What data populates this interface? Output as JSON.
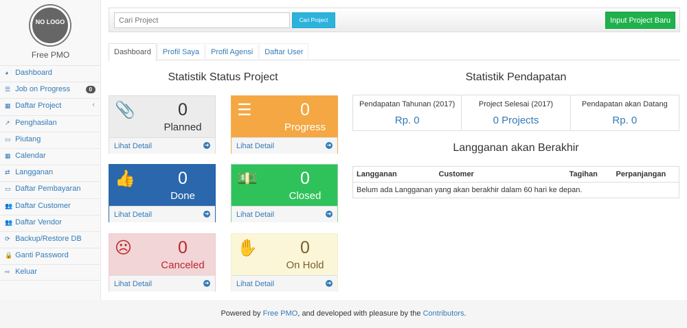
{
  "sidebar": {
    "logo_text": "NO LOGO",
    "brand": "Free PMO",
    "items": [
      {
        "label": "Dashboard",
        "icon": "dashboard-icon",
        "glyph": "◕"
      },
      {
        "label": "Job on Progress",
        "icon": "tasks-icon",
        "glyph": "☰",
        "badge": "0"
      },
      {
        "label": "Daftar Project",
        "icon": "table-icon",
        "glyph": "▦",
        "chevron": "‹"
      },
      {
        "label": "Penghasilan",
        "icon": "line-chart-icon",
        "glyph": "↗"
      },
      {
        "label": "Piutang",
        "icon": "money-icon",
        "glyph": "▭"
      },
      {
        "label": "Calendar",
        "icon": "calendar-icon",
        "glyph": "▦"
      },
      {
        "label": "Langganan",
        "icon": "retweet-icon",
        "glyph": "⇄"
      },
      {
        "label": "Daftar Pembayaran",
        "icon": "money-icon",
        "glyph": "▭"
      },
      {
        "label": "Daftar Customer",
        "icon": "users-icon",
        "glyph": "👥"
      },
      {
        "label": "Daftar Vendor",
        "icon": "users-icon",
        "glyph": "👥"
      },
      {
        "label": "Backup/Restore DB",
        "icon": "refresh-icon",
        "glyph": "⟳"
      },
      {
        "label": "Ganti Password",
        "icon": "lock-icon",
        "glyph": "🔒"
      },
      {
        "label": "Keluar",
        "icon": "sign-out-icon",
        "glyph": "⇨"
      }
    ]
  },
  "topbar": {
    "search_placeholder": "Cari Project",
    "search_button": "Cari Project",
    "new_button": "Input Project Baru"
  },
  "tabs": [
    "Dashboard",
    "Profil Saya",
    "Profil Agensi",
    "Daftar User"
  ],
  "status": {
    "title": "Statistik Status Project",
    "detail_label": "Lihat Detail",
    "cards": [
      {
        "label": "Planned",
        "count": "0",
        "icon": "paperclip-icon",
        "glyph": "📎",
        "bg": "#ececec",
        "fg": "#333",
        "border": "#ddd"
      },
      {
        "label": "Progress",
        "count": "0",
        "icon": "tasks-icon",
        "glyph": "☰",
        "bg": "#f4a742",
        "fg": "#fff",
        "border": "#f0ad4e"
      },
      {
        "label": "Done",
        "count": "0",
        "icon": "thumbs-up-icon",
        "glyph": "👍",
        "bg": "#2a67ac",
        "fg": "#fff",
        "border": "#2a67ac"
      },
      {
        "label": "Closed",
        "count": "0",
        "icon": "money-icon",
        "glyph": "💵",
        "bg": "#2fc25b",
        "fg": "#fff",
        "border": "#8fd1a1"
      },
      {
        "label": "Canceled",
        "count": "0",
        "icon": "frown-icon",
        "glyph": "☹",
        "bg": "#f2d5d6",
        "fg": "#b8282e",
        "border": "#ebccd1"
      },
      {
        "label": "On Hold",
        "count": "0",
        "icon": "hand-icon",
        "glyph": "✋",
        "bg": "#fbf6d8",
        "fg": "#7a5f2c",
        "border": "#f5eecb"
      }
    ]
  },
  "income": {
    "title": "Statistik Pendapatan",
    "stats": [
      {
        "label": "Pendapatan Tahunan (2017)",
        "value": "Rp. 0"
      },
      {
        "label": "Project Selesai (2017)",
        "value": "0 Projects"
      },
      {
        "label": "Pendapatan akan Datang",
        "value": "Rp. 0"
      }
    ]
  },
  "subscriptions": {
    "title": "Langganan akan Berakhir",
    "columns": [
      "Langganan",
      "Customer",
      "Tagihan",
      "Perpanjangan"
    ],
    "empty": "Belum ada Langganan yang akan berakhir dalam 60 hari ke depan."
  },
  "footer": {
    "pre": "Powered by ",
    "link1": "Free PMO",
    "mid": ", and developed with pleasure by the ",
    "link2": "Contributors",
    "post": "."
  }
}
